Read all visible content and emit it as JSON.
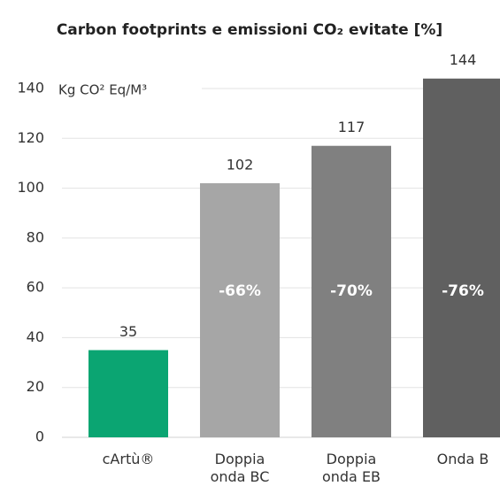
{
  "chart_data": {
    "type": "bar",
    "title": "Carbon footprints e emissioni CO₂ evitate [%]",
    "y_label": "Kg CO² Eq/M³",
    "categories": [
      "cArtù®",
      "Doppia onda BC",
      "Doppia onda EB",
      "Onda B"
    ],
    "values": [
      35,
      102,
      117,
      144
    ],
    "colors": [
      "#0ba572",
      "#a6a6a6",
      "#808080",
      "#606060"
    ],
    "bar_labels": [
      null,
      "-66%",
      "-70%",
      "-76%"
    ],
    "ylim": [
      0,
      140
    ],
    "yticks": [
      0,
      20,
      40,
      60,
      80,
      100,
      120,
      140
    ],
    "grid": true
  }
}
